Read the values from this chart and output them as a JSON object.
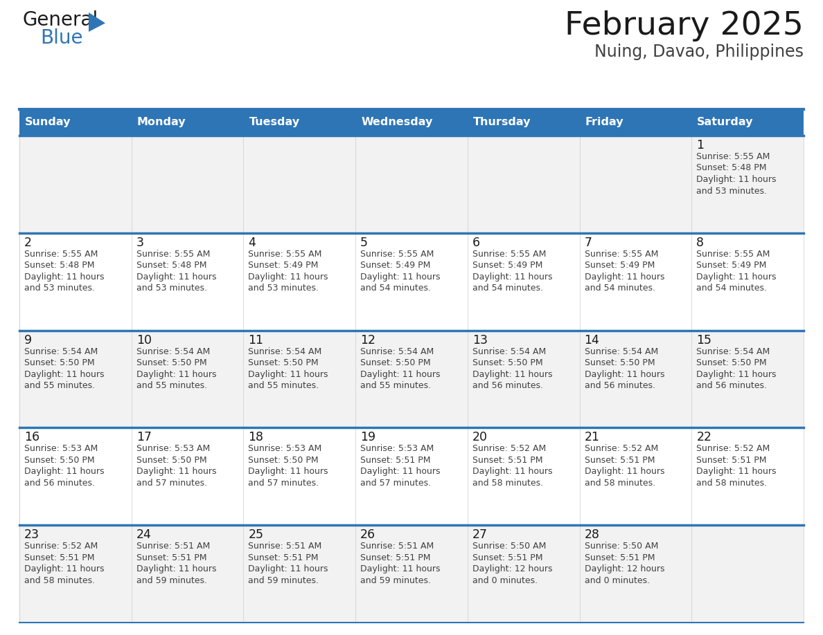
{
  "title": "February 2025",
  "subtitle": "Nuing, Davao, Philippines",
  "header_bg": "#2E75B6",
  "header_text_color": "#FFFFFF",
  "days_of_week": [
    "Sunday",
    "Monday",
    "Tuesday",
    "Wednesday",
    "Thursday",
    "Friday",
    "Saturday"
  ],
  "cell_bg_even": "#F2F2F2",
  "cell_bg_odd": "#FFFFFF",
  "row_line_color": "#2E75B6",
  "text_color": "#404040",
  "day_number_color": "#1A1A1A",
  "separator_color": "#2E75B6",
  "calendar": [
    [
      null,
      null,
      null,
      null,
      null,
      null,
      {
        "day": 1,
        "sunrise": "5:55 AM",
        "sunset": "5:48 PM",
        "daylight": "11 hours and 53 minutes."
      }
    ],
    [
      {
        "day": 2,
        "sunrise": "5:55 AM",
        "sunset": "5:48 PM",
        "daylight": "11 hours and 53 minutes."
      },
      {
        "day": 3,
        "sunrise": "5:55 AM",
        "sunset": "5:48 PM",
        "daylight": "11 hours and 53 minutes."
      },
      {
        "day": 4,
        "sunrise": "5:55 AM",
        "sunset": "5:49 PM",
        "daylight": "11 hours and 53 minutes."
      },
      {
        "day": 5,
        "sunrise": "5:55 AM",
        "sunset": "5:49 PM",
        "daylight": "11 hours and 54 minutes."
      },
      {
        "day": 6,
        "sunrise": "5:55 AM",
        "sunset": "5:49 PM",
        "daylight": "11 hours and 54 minutes."
      },
      {
        "day": 7,
        "sunrise": "5:55 AM",
        "sunset": "5:49 PM",
        "daylight": "11 hours and 54 minutes."
      },
      {
        "day": 8,
        "sunrise": "5:55 AM",
        "sunset": "5:49 PM",
        "daylight": "11 hours and 54 minutes."
      }
    ],
    [
      {
        "day": 9,
        "sunrise": "5:54 AM",
        "sunset": "5:50 PM",
        "daylight": "11 hours and 55 minutes."
      },
      {
        "day": 10,
        "sunrise": "5:54 AM",
        "sunset": "5:50 PM",
        "daylight": "11 hours and 55 minutes."
      },
      {
        "day": 11,
        "sunrise": "5:54 AM",
        "sunset": "5:50 PM",
        "daylight": "11 hours and 55 minutes."
      },
      {
        "day": 12,
        "sunrise": "5:54 AM",
        "sunset": "5:50 PM",
        "daylight": "11 hours and 55 minutes."
      },
      {
        "day": 13,
        "sunrise": "5:54 AM",
        "sunset": "5:50 PM",
        "daylight": "11 hours and 56 minutes."
      },
      {
        "day": 14,
        "sunrise": "5:54 AM",
        "sunset": "5:50 PM",
        "daylight": "11 hours and 56 minutes."
      },
      {
        "day": 15,
        "sunrise": "5:54 AM",
        "sunset": "5:50 PM",
        "daylight": "11 hours and 56 minutes."
      }
    ],
    [
      {
        "day": 16,
        "sunrise": "5:53 AM",
        "sunset": "5:50 PM",
        "daylight": "11 hours and 56 minutes."
      },
      {
        "day": 17,
        "sunrise": "5:53 AM",
        "sunset": "5:50 PM",
        "daylight": "11 hours and 57 minutes."
      },
      {
        "day": 18,
        "sunrise": "5:53 AM",
        "sunset": "5:50 PM",
        "daylight": "11 hours and 57 minutes."
      },
      {
        "day": 19,
        "sunrise": "5:53 AM",
        "sunset": "5:51 PM",
        "daylight": "11 hours and 57 minutes."
      },
      {
        "day": 20,
        "sunrise": "5:52 AM",
        "sunset": "5:51 PM",
        "daylight": "11 hours and 58 minutes."
      },
      {
        "day": 21,
        "sunrise": "5:52 AM",
        "sunset": "5:51 PM",
        "daylight": "11 hours and 58 minutes."
      },
      {
        "day": 22,
        "sunrise": "5:52 AM",
        "sunset": "5:51 PM",
        "daylight": "11 hours and 58 minutes."
      }
    ],
    [
      {
        "day": 23,
        "sunrise": "5:52 AM",
        "sunset": "5:51 PM",
        "daylight": "11 hours and 58 minutes."
      },
      {
        "day": 24,
        "sunrise": "5:51 AM",
        "sunset": "5:51 PM",
        "daylight": "11 hours and 59 minutes."
      },
      {
        "day": 25,
        "sunrise": "5:51 AM",
        "sunset": "5:51 PM",
        "daylight": "11 hours and 59 minutes."
      },
      {
        "day": 26,
        "sunrise": "5:51 AM",
        "sunset": "5:51 PM",
        "daylight": "11 hours and 59 minutes."
      },
      {
        "day": 27,
        "sunrise": "5:50 AM",
        "sunset": "5:51 PM",
        "daylight": "12 hours and 0 minutes."
      },
      {
        "day": 28,
        "sunrise": "5:50 AM",
        "sunset": "5:51 PM",
        "daylight": "12 hours and 0 minutes."
      },
      null
    ]
  ]
}
